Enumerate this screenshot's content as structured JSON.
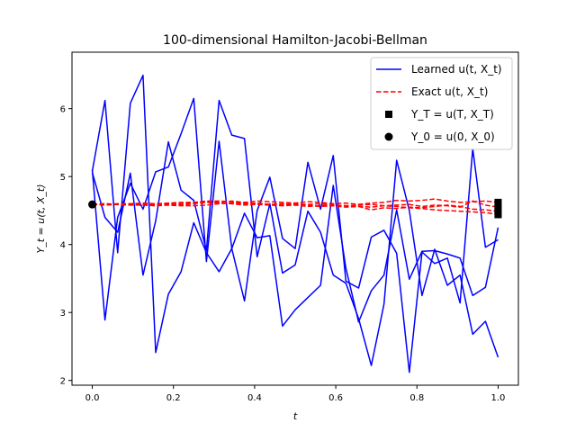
{
  "chart_data": {
    "type": "line",
    "title": "100-dimensional Hamilton-Jacobi-Bellman",
    "xlabel": "t",
    "ylabel": "Y_t = u(t, X_t)",
    "xlim": [
      -0.05,
      1.05
    ],
    "ylim": [
      1.93,
      6.83
    ],
    "xticks": [
      "0.0",
      "0.2",
      "0.4",
      "0.6",
      "0.8",
      "1.0"
    ],
    "xtick_values": [
      0.0,
      0.2,
      0.4,
      0.6,
      0.8,
      1.0
    ],
    "yticks": [
      "2",
      "3",
      "4",
      "5",
      "6"
    ],
    "ytick_values": [
      2,
      3,
      4,
      5,
      6
    ],
    "grid": false,
    "legend_position": "top-right",
    "legend": [
      {
        "label": "Learned u(t, X_t)",
        "style": "line"
      },
      {
        "label": "Exact u(t, X_t)",
        "style": "dashed"
      },
      {
        "label": "Y_T = u(T, X_T)",
        "style": "square"
      },
      {
        "label": "Y_0 = u(0, X_0)",
        "style": "circle"
      }
    ],
    "colors": {
      "learned": "#0000ff",
      "exact": "#ff0000",
      "marker": "#000000"
    },
    "t": [
      0.0,
      0.03125,
      0.0625,
      0.09375,
      0.125,
      0.15625,
      0.1875,
      0.21875,
      0.25,
      0.28125,
      0.3125,
      0.34375,
      0.375,
      0.40625,
      0.4375,
      0.46875,
      0.5,
      0.53125,
      0.5625,
      0.59375,
      0.625,
      0.65625,
      0.6875,
      0.71875,
      0.75,
      0.78125,
      0.8125,
      0.84375,
      0.875,
      0.90625,
      0.9375,
      0.96875,
      1.0
    ],
    "series": [
      {
        "kind": "learned",
        "values": [
          5.08,
          6.12,
          3.88,
          6.08,
          6.49,
          2.41,
          3.27,
          3.6,
          4.32,
          3.88,
          3.6,
          3.94,
          4.46,
          4.1,
          4.13,
          2.8,
          3.04,
          3.22,
          3.4,
          4.87,
          3.65,
          2.86,
          3.32,
          3.55,
          4.51,
          3.49,
          3.9,
          3.91,
          3.86,
          3.8,
          3.25,
          3.37,
          4.25
        ]
      },
      {
        "kind": "learned",
        "values": [
          5.1,
          2.89,
          4.4,
          4.9,
          4.52,
          5.07,
          5.14,
          5.63,
          6.15,
          3.75,
          5.52,
          3.94,
          3.17,
          4.5,
          4.99,
          4.09,
          3.94,
          5.21,
          4.52,
          5.31,
          3.46,
          3.36,
          4.11,
          4.21,
          3.87,
          2.12,
          3.89,
          3.72,
          3.8,
          3.14,
          5.41,
          3.96,
          4.07
        ]
      },
      {
        "kind": "learned",
        "values": [
          5.06,
          4.4,
          4.18,
          5.05,
          3.55,
          4.35,
          5.51,
          4.8,
          4.65,
          3.91,
          6.12,
          5.61,
          5.56,
          3.82,
          4.6,
          3.58,
          3.7,
          4.49,
          4.18,
          3.55,
          3.43,
          2.91,
          2.22,
          3.12,
          5.24,
          4.5,
          3.25,
          3.93,
          3.4,
          3.55,
          2.68,
          2.87,
          2.34
        ]
      },
      {
        "kind": "exact",
        "values": [
          4.59,
          4.6,
          4.59,
          4.6,
          4.58,
          4.59,
          4.6,
          4.6,
          4.61,
          4.63,
          4.62,
          4.64,
          4.62,
          4.64,
          4.63,
          4.62,
          4.61,
          4.63,
          4.62,
          4.6,
          4.61,
          4.59,
          4.61,
          4.62,
          4.65,
          4.64,
          4.65,
          4.67,
          4.64,
          4.62,
          4.63,
          4.64,
          4.62
        ]
      },
      {
        "kind": "exact",
        "values": [
          4.59,
          4.59,
          4.6,
          4.6,
          4.61,
          4.6,
          4.61,
          4.62,
          4.62,
          4.64,
          4.64,
          4.63,
          4.61,
          4.6,
          4.59,
          4.58,
          4.6,
          4.59,
          4.6,
          4.58,
          4.57,
          4.58,
          4.59,
          4.57,
          4.58,
          4.59,
          4.56,
          4.58,
          4.57,
          4.55,
          4.64,
          4.58,
          4.55
        ]
      },
      {
        "kind": "exact",
        "values": [
          4.59,
          4.6,
          4.59,
          4.58,
          4.59,
          4.58,
          4.59,
          4.58,
          4.6,
          4.62,
          4.61,
          4.6,
          4.58,
          4.59,
          4.58,
          4.57,
          4.58,
          4.56,
          4.57,
          4.58,
          4.57,
          4.56,
          4.55,
          4.57,
          4.56,
          4.54,
          4.53,
          4.51,
          4.5,
          4.49,
          4.48,
          4.47,
          4.44
        ]
      },
      {
        "kind": "exact",
        "values": [
          4.59,
          4.58,
          4.59,
          4.58,
          4.58,
          4.57,
          4.58,
          4.57,
          4.57,
          4.58,
          4.6,
          4.61,
          4.6,
          4.61,
          4.59,
          4.6,
          4.59,
          4.58,
          4.56,
          4.57,
          4.55,
          4.56,
          4.51,
          4.54,
          4.53,
          4.55,
          4.54,
          4.56,
          4.58,
          4.56,
          4.52,
          4.51,
          4.49
        ]
      }
    ],
    "terminal_points": {
      "t": 1.0,
      "values": [
        4.62,
        4.58,
        4.55,
        4.52,
        4.49,
        4.46,
        4.44
      ]
    },
    "initial_point": {
      "t": 0.0,
      "value": 4.59
    }
  }
}
